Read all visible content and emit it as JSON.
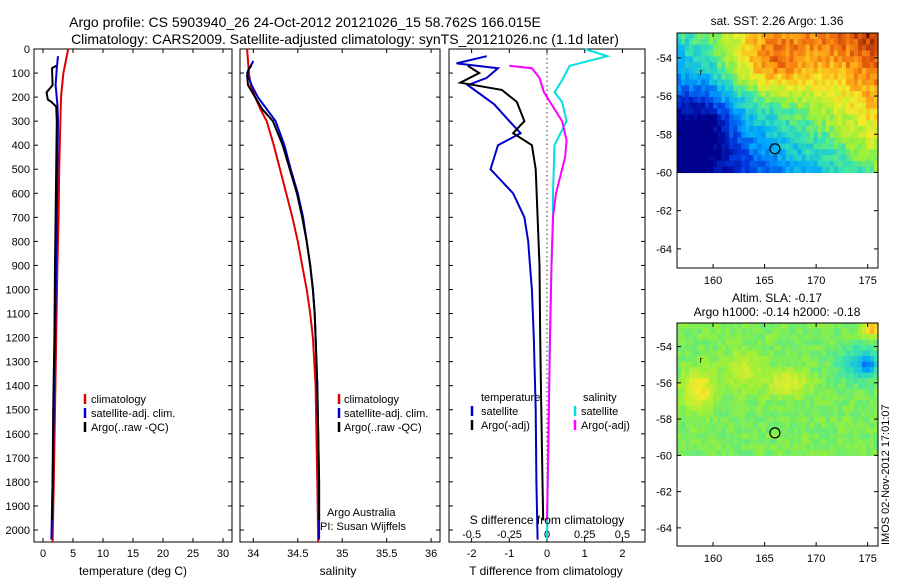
{
  "header": {
    "line1": "Argo profile: CS 5903940_26 24-Oct-2012 20121026_15 58.762S 166.015E",
    "line2": "Climatology: CARS2009. Satellite-adjusted climatology: synTS_20121026.nc (1.1d later)"
  },
  "colors": {
    "climatology": "#e00000",
    "satellite": "#0000cc",
    "argo": "#000000",
    "sat_salinity": "#00e0e0",
    "argo_salinity": "#ff00ff"
  },
  "depth_axis": {
    "ylim": [
      0,
      2050
    ],
    "ticks": [
      0,
      100,
      200,
      300,
      400,
      500,
      600,
      700,
      800,
      900,
      1000,
      1100,
      1200,
      1300,
      1400,
      1500,
      1600,
      1700,
      1800,
      1900,
      2000
    ]
  },
  "chart_data": [
    {
      "id": "temperature",
      "type": "line",
      "xlabel": "temperature (deg C)",
      "xlim": [
        -1.5,
        31.5
      ],
      "xticks": [
        0,
        5,
        10,
        15,
        20,
        25,
        30
      ],
      "legend": [
        "climatology",
        "satellite-adj. clim.",
        "Argo(..raw -QC)"
      ],
      "series": [
        {
          "name": "climatology",
          "color": "climatology",
          "points": [
            [
              4.2,
              0
            ],
            [
              3.8,
              50
            ],
            [
              3.4,
              100
            ],
            [
              3.2,
              150
            ],
            [
              3.0,
              200
            ],
            [
              2.9,
              300
            ],
            [
              2.8,
              400
            ],
            [
              2.7,
              500
            ],
            [
              2.6,
              700
            ],
            [
              2.4,
              900
            ],
            [
              2.2,
              1200
            ],
            [
              2.0,
              1500
            ],
            [
              1.8,
              1800
            ],
            [
              1.6,
              2050
            ]
          ]
        },
        {
          "name": "satellite-adj. clim.",
          "color": "satellite",
          "points": [
            [
              2.5,
              30
            ],
            [
              2.3,
              80
            ],
            [
              2.1,
              150
            ],
            [
              2.4,
              230
            ],
            [
              2.5,
              300
            ],
            [
              2.4,
              500
            ],
            [
              2.3,
              700
            ],
            [
              2.2,
              900
            ],
            [
              2.0,
              1200
            ],
            [
              1.8,
              1500
            ],
            [
              1.6,
              1800
            ],
            [
              1.4,
              2040
            ]
          ]
        },
        {
          "name": "Argo(..raw -QC)",
          "color": "argo",
          "points": [
            [
              2.2,
              70
            ],
            [
              1.5,
              80
            ],
            [
              1.6,
              150
            ],
            [
              0.6,
              180
            ],
            [
              0.8,
              210
            ],
            [
              1.4,
              220
            ],
            [
              2.2,
              240
            ],
            [
              2.3,
              300
            ],
            [
              2.2,
              500
            ],
            [
              2.1,
              700
            ],
            [
              2.0,
              900
            ],
            [
              1.9,
              1200
            ],
            [
              1.7,
              1500
            ],
            [
              1.6,
              1800
            ],
            [
              1.5,
              1960
            ]
          ]
        }
      ]
    },
    {
      "id": "salinity",
      "type": "line",
      "xlabel": "salinity",
      "xlim": [
        33.85,
        36.1
      ],
      "xticks": [
        34,
        34.5,
        35,
        35.5,
        36
      ],
      "xticklabels": [
        "34",
        "34.5",
        "35",
        "35.5",
        "36"
      ],
      "legend": [
        "climatology",
        "satellite-adj. clim.",
        "Argo(..raw -QC)"
      ],
      "annotation": [
        "Argo Australia",
        "PI: Susan Wijffels"
      ],
      "series": [
        {
          "name": "climatology",
          "color": "climatology",
          "points": [
            [
              33.93,
              0
            ],
            [
              33.94,
              50
            ],
            [
              33.95,
              100
            ],
            [
              33.97,
              150
            ],
            [
              34.02,
              200
            ],
            [
              34.08,
              250
            ],
            [
              34.15,
              300
            ],
            [
              34.23,
              400
            ],
            [
              34.3,
              500
            ],
            [
              34.37,
              600
            ],
            [
              34.44,
              700
            ],
            [
              34.5,
              800
            ],
            [
              34.55,
              900
            ],
            [
              34.6,
              1000
            ],
            [
              34.64,
              1100
            ],
            [
              34.67,
              1200
            ],
            [
              34.7,
              1400
            ],
            [
              34.71,
              1600
            ],
            [
              34.72,
              1800
            ],
            [
              34.73,
              2050
            ]
          ]
        },
        {
          "name": "satellite-adj. clim.",
          "color": "satellite",
          "points": [
            [
              34.0,
              50
            ],
            [
              33.93,
              100
            ],
            [
              33.98,
              150
            ],
            [
              34.05,
              200
            ],
            [
              34.15,
              250
            ],
            [
              34.25,
              300
            ],
            [
              34.35,
              400
            ],
            [
              34.42,
              500
            ],
            [
              34.5,
              600
            ],
            [
              34.56,
              700
            ],
            [
              34.6,
              800
            ],
            [
              34.64,
              900
            ],
            [
              34.67,
              1000
            ],
            [
              34.69,
              1100
            ],
            [
              34.7,
              1200
            ],
            [
              34.72,
              1400
            ],
            [
              34.73,
              1600
            ],
            [
              34.74,
              1800
            ],
            [
              34.74,
              2040
            ]
          ]
        },
        {
          "name": "Argo(..raw -QC)",
          "color": "argo",
          "points": [
            [
              33.98,
              70
            ],
            [
              33.95,
              80
            ],
            [
              33.93,
              110
            ],
            [
              33.94,
              150
            ],
            [
              34.02,
              200
            ],
            [
              34.1,
              250
            ],
            [
              34.22,
              300
            ],
            [
              34.33,
              400
            ],
            [
              34.41,
              500
            ],
            [
              34.49,
              600
            ],
            [
              34.55,
              700
            ],
            [
              34.6,
              800
            ],
            [
              34.64,
              900
            ],
            [
              34.67,
              1000
            ],
            [
              34.69,
              1100
            ],
            [
              34.7,
              1200
            ],
            [
              34.72,
              1400
            ],
            [
              34.73,
              1600
            ],
            [
              34.74,
              1800
            ],
            [
              34.74,
              1960
            ]
          ]
        }
      ]
    },
    {
      "id": "differences",
      "type": "line",
      "xlabel": "T difference from climatology",
      "xlabel_top": "S difference from climatology",
      "xlim": [
        -2.6,
        2.6
      ],
      "xticks": [
        -2,
        -1,
        0,
        1,
        2
      ],
      "xticks_top": [
        -0.5,
        -0.25,
        0,
        0.25,
        0.5
      ],
      "s_scale": 4,
      "legend_titles": [
        "temperature",
        "salinity"
      ],
      "legend": [
        [
          "satellite",
          "Argo(-adj)"
        ],
        [
          "satellite",
          "Argo(-adj)"
        ]
      ],
      "series": [
        {
          "name": "satellite",
          "group": "temperature",
          "color": "satellite",
          "points": [
            [
              -1.6,
              30
            ],
            [
              -2.4,
              60
            ],
            [
              -1.3,
              80
            ],
            [
              -1.6,
              120
            ],
            [
              -2.1,
              150
            ],
            [
              -1.4,
              230
            ],
            [
              -1.0,
              300
            ],
            [
              -0.7,
              350
            ],
            [
              -1.3,
              400
            ],
            [
              -1.5,
              500
            ],
            [
              -0.9,
              600
            ],
            [
              -0.6,
              700
            ],
            [
              -0.5,
              800
            ],
            [
              -0.45,
              900
            ],
            [
              -0.4,
              1000
            ],
            [
              -0.35,
              1200
            ],
            [
              -0.3,
              1500
            ],
            [
              -0.28,
              1800
            ],
            [
              -0.25,
              2040
            ]
          ]
        },
        {
          "name": "Argo(-adj)",
          "group": "temperature",
          "color": "argo",
          "points": [
            [
              -2.1,
              70
            ],
            [
              -1.8,
              100
            ],
            [
              -2.3,
              140
            ],
            [
              -1.2,
              170
            ],
            [
              -0.8,
              220
            ],
            [
              -0.6,
              300
            ],
            [
              -0.9,
              350
            ],
            [
              -0.4,
              400
            ],
            [
              -0.3,
              500
            ],
            [
              -0.25,
              700
            ],
            [
              -0.2,
              900
            ],
            [
              -0.18,
              1200
            ],
            [
              -0.15,
              1500
            ],
            [
              -0.12,
              1800
            ],
            [
              -0.1,
              1960
            ]
          ]
        },
        {
          "name": "satellite",
          "group": "salinity",
          "color": "sat_salinity",
          "points": [
            [
              0.25,
              0
            ],
            [
              0.4,
              30
            ],
            [
              0.15,
              70
            ],
            [
              0.1,
              130
            ],
            [
              0.05,
              180
            ],
            [
              0.1,
              220
            ],
            [
              0.13,
              300
            ],
            [
              0.05,
              400
            ],
            [
              0.04,
              600
            ],
            [
              0.04,
              700
            ],
            [
              0.03,
              900
            ],
            [
              0.02,
              1200
            ],
            [
              0.01,
              1600
            ],
            [
              0.0,
              2040
            ]
          ]
        },
        {
          "name": "Argo(-adj)",
          "group": "salinity",
          "color": "argo_salinity",
          "points": [
            [
              -0.25,
              70
            ],
            [
              -0.1,
              80
            ],
            [
              -0.05,
              120
            ],
            [
              -0.02,
              180
            ],
            [
              0.03,
              230
            ],
            [
              0.1,
              300
            ],
            [
              0.13,
              380
            ],
            [
              0.12,
              450
            ],
            [
              0.1,
              500
            ],
            [
              0.06,
              600
            ],
            [
              0.04,
              700
            ],
            [
              0.03,
              900
            ],
            [
              0.02,
              1200
            ],
            [
              0.01,
              1600
            ],
            [
              0.0,
              1960
            ]
          ]
        }
      ]
    },
    {
      "id": "sst_map",
      "type": "heatmap",
      "title": "sat. SST: 2.26 Argo: 1.36",
      "xlim": [
        156.5,
        176
      ],
      "ylim": [
        -65,
        -52.7
      ],
      "xticks": [
        160,
        165,
        170,
        175
      ],
      "yticks": [
        -54,
        -56,
        -58,
        -60,
        -62,
        -64
      ],
      "data_ylim": [
        -60,
        -52.7
      ],
      "marker": [
        166.0,
        -58.76
      ]
    },
    {
      "id": "sla_map",
      "type": "heatmap",
      "title": "Altim. SLA: -0.17",
      "subtitle": "Argo h1000: -0.14 h2000: -0.18",
      "xlim": [
        156.5,
        176
      ],
      "ylim": [
        -65,
        -52.7
      ],
      "xticks": [
        160,
        165,
        170,
        175
      ],
      "yticks": [
        -54,
        -56,
        -58,
        -60,
        -62,
        -64
      ],
      "data_ylim": [
        -60,
        -52.7
      ],
      "marker": [
        166.0,
        -58.76
      ]
    }
  ],
  "footer": {
    "credit": "IMOS 02-Nov-2012 17:01:07"
  }
}
